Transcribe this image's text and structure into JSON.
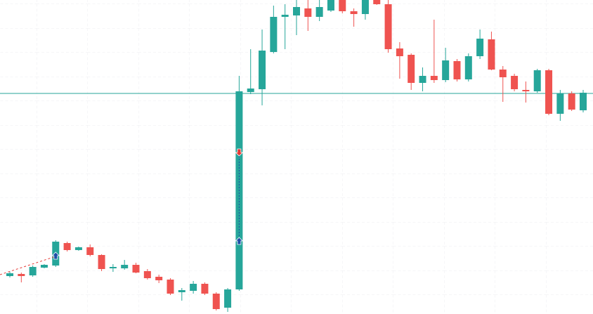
{
  "chart_data": {
    "type": "candlestick",
    "up_color": "#26a69a",
    "down_color": "#ef5350",
    "ylim": [
      0,
      447
    ],
    "grid": true,
    "open": [
      54,
      57,
      55,
      66,
      69,
      101,
      91,
      95,
      84,
      65,
      65,
      70,
      61,
      53,
      49,
      31,
      33,
      43,
      29,
      9,
      35,
      316,
      320,
      373,
      423,
      425,
      435,
      423,
      432,
      447,
      431,
      427,
      447,
      441,
      378,
      369,
      329,
      339,
      333,
      360,
      334,
      367,
      391,
      348,
      339,
      319,
      317,
      347,
      285,
      314,
      290
    ],
    "high": [
      60,
      59,
      69,
      71,
      105,
      103,
      96,
      99,
      85,
      71,
      77,
      73,
      64,
      56,
      51,
      37,
      47,
      45,
      31,
      37,
      339,
      377,
      405,
      439,
      441,
      447,
      447,
      447,
      447,
      447,
      435,
      447,
      447,
      447,
      387,
      371,
      351,
      419,
      379,
      363,
      371,
      405,
      402,
      353,
      342,
      331,
      349,
      349,
      319,
      317,
      319
    ],
    "low": [
      52,
      45,
      53,
      65,
      67,
      89,
      90,
      82,
      61,
      60,
      63,
      58,
      49,
      44,
      27,
      19,
      29,
      27,
      5,
      3,
      33,
      313,
      297,
      371,
      377,
      397,
      403,
      417,
      430,
      428,
      409,
      419,
      440,
      372,
      335,
      319,
      317,
      329,
      330,
      331,
      331,
      363,
      347,
      302,
      317,
      301,
      315,
      283,
      275,
      289,
      287
    ],
    "close": [
      58,
      54,
      67,
      70,
      103,
      91,
      95,
      84,
      64,
      67,
      70,
      59,
      51,
      48,
      29,
      34,
      43,
      29,
      7,
      35,
      317,
      321,
      375,
      423,
      426,
      437,
      423,
      437,
      447,
      431,
      427,
      447,
      441,
      377,
      367,
      329,
      339,
      333,
      361,
      334,
      367,
      392,
      348,
      337,
      320,
      317,
      347,
      285,
      314,
      291,
      315
    ],
    "hline": {
      "value": 314,
      "color": "#26a69a"
    },
    "buy_markers": {
      "x": [
        4,
        20
      ],
      "values": [
        82,
        103
      ],
      "color": "#1e4fa8"
    },
    "sell_markers": {
      "x": [
        20
      ],
      "values": [
        231
      ],
      "color": "#e53935"
    }
  }
}
